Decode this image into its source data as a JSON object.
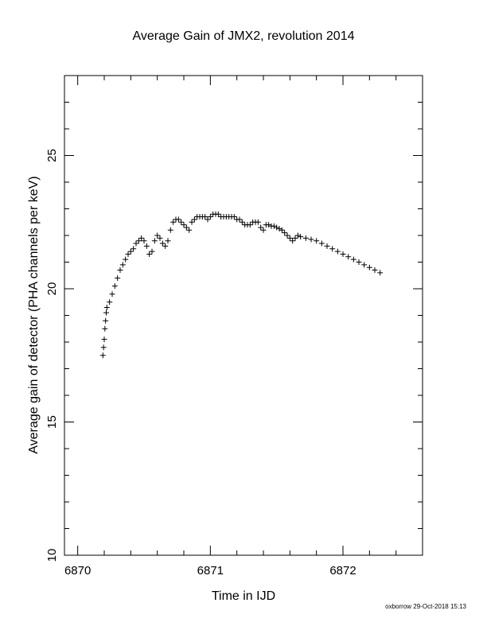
{
  "chart_data": {
    "type": "scatter",
    "title": "Average Gain of JMX2, revolution 2014",
    "xlabel": "Time in IJD",
    "ylabel": "Average gain of detector (PHA channels per keV)",
    "xlim": [
      6869.9,
      6872.6
    ],
    "ylim": [
      10,
      28
    ],
    "x_ticks": [
      6870,
      6871,
      6872
    ],
    "x_tick_labels": [
      "6870",
      "6871",
      "6872"
    ],
    "y_ticks": [
      10,
      15,
      20,
      25
    ],
    "y_tick_labels": [
      "10",
      "15",
      "20",
      "25"
    ],
    "marker": "plus",
    "grid": false,
    "series": [
      {
        "color": "#000000",
        "points": [
          [
            6870.19,
            17.5
          ],
          [
            6870.195,
            17.8
          ],
          [
            6870.2,
            18.1
          ],
          [
            6870.205,
            18.5
          ],
          [
            6870.21,
            18.8
          ],
          [
            6870.215,
            19.1
          ],
          [
            6870.22,
            19.3
          ],
          [
            6870.24,
            19.5
          ],
          [
            6870.26,
            19.8
          ],
          [
            6870.28,
            20.1
          ],
          [
            6870.3,
            20.4
          ],
          [
            6870.32,
            20.7
          ],
          [
            6870.34,
            20.9
          ],
          [
            6870.36,
            21.1
          ],
          [
            6870.38,
            21.3
          ],
          [
            6870.4,
            21.4
          ],
          [
            6870.42,
            21.5
          ],
          [
            6870.44,
            21.7
          ],
          [
            6870.46,
            21.8
          ],
          [
            6870.48,
            21.9
          ],
          [
            6870.5,
            21.8
          ],
          [
            6870.52,
            21.6
          ],
          [
            6870.54,
            21.3
          ],
          [
            6870.56,
            21.4
          ],
          [
            6870.58,
            21.8
          ],
          [
            6870.6,
            22.0
          ],
          [
            6870.62,
            21.9
          ],
          [
            6870.64,
            21.7
          ],
          [
            6870.66,
            21.6
          ],
          [
            6870.68,
            21.8
          ],
          [
            6870.7,
            22.2
          ],
          [
            6870.72,
            22.5
          ],
          [
            6870.74,
            22.6
          ],
          [
            6870.76,
            22.6
          ],
          [
            6870.78,
            22.5
          ],
          [
            6870.8,
            22.4
          ],
          [
            6870.82,
            22.3
          ],
          [
            6870.84,
            22.2
          ],
          [
            6870.86,
            22.5
          ],
          [
            6870.88,
            22.6
          ],
          [
            6870.9,
            22.7
          ],
          [
            6870.92,
            22.7
          ],
          [
            6870.94,
            22.7
          ],
          [
            6870.96,
            22.7
          ],
          [
            6870.98,
            22.6
          ],
          [
            6871.0,
            22.7
          ],
          [
            6871.02,
            22.8
          ],
          [
            6871.04,
            22.8
          ],
          [
            6871.06,
            22.8
          ],
          [
            6871.08,
            22.7
          ],
          [
            6871.1,
            22.7
          ],
          [
            6871.12,
            22.7
          ],
          [
            6871.14,
            22.7
          ],
          [
            6871.16,
            22.7
          ],
          [
            6871.18,
            22.7
          ],
          [
            6871.2,
            22.6
          ],
          [
            6871.22,
            22.6
          ],
          [
            6871.24,
            22.5
          ],
          [
            6871.26,
            22.4
          ],
          [
            6871.28,
            22.4
          ],
          [
            6871.3,
            22.4
          ],
          [
            6871.32,
            22.5
          ],
          [
            6871.34,
            22.5
          ],
          [
            6871.36,
            22.5
          ],
          [
            6871.38,
            22.3
          ],
          [
            6871.4,
            22.2
          ],
          [
            6871.42,
            22.4
          ],
          [
            6871.44,
            22.4
          ],
          [
            6871.46,
            22.35
          ],
          [
            6871.48,
            22.35
          ],
          [
            6871.5,
            22.3
          ],
          [
            6871.52,
            22.25
          ],
          [
            6871.54,
            22.2
          ],
          [
            6871.56,
            22.1
          ],
          [
            6871.58,
            22.0
          ],
          [
            6871.6,
            21.9
          ],
          [
            6871.62,
            21.8
          ],
          [
            6871.64,
            21.9
          ],
          [
            6871.66,
            22.0
          ],
          [
            6871.68,
            21.95
          ],
          [
            6871.72,
            21.9
          ],
          [
            6871.76,
            21.85
          ],
          [
            6871.8,
            21.8
          ],
          [
            6871.84,
            21.7
          ],
          [
            6871.88,
            21.6
          ],
          [
            6871.92,
            21.5
          ],
          [
            6871.96,
            21.4
          ],
          [
            6872.0,
            21.3
          ],
          [
            6872.04,
            21.2
          ],
          [
            6872.08,
            21.1
          ],
          [
            6872.12,
            21.0
          ],
          [
            6872.16,
            20.9
          ],
          [
            6872.2,
            20.8
          ],
          [
            6872.24,
            20.7
          ],
          [
            6872.28,
            20.6
          ]
        ]
      }
    ]
  },
  "footer": "oxborrow 29-Oct-2018 15:13"
}
